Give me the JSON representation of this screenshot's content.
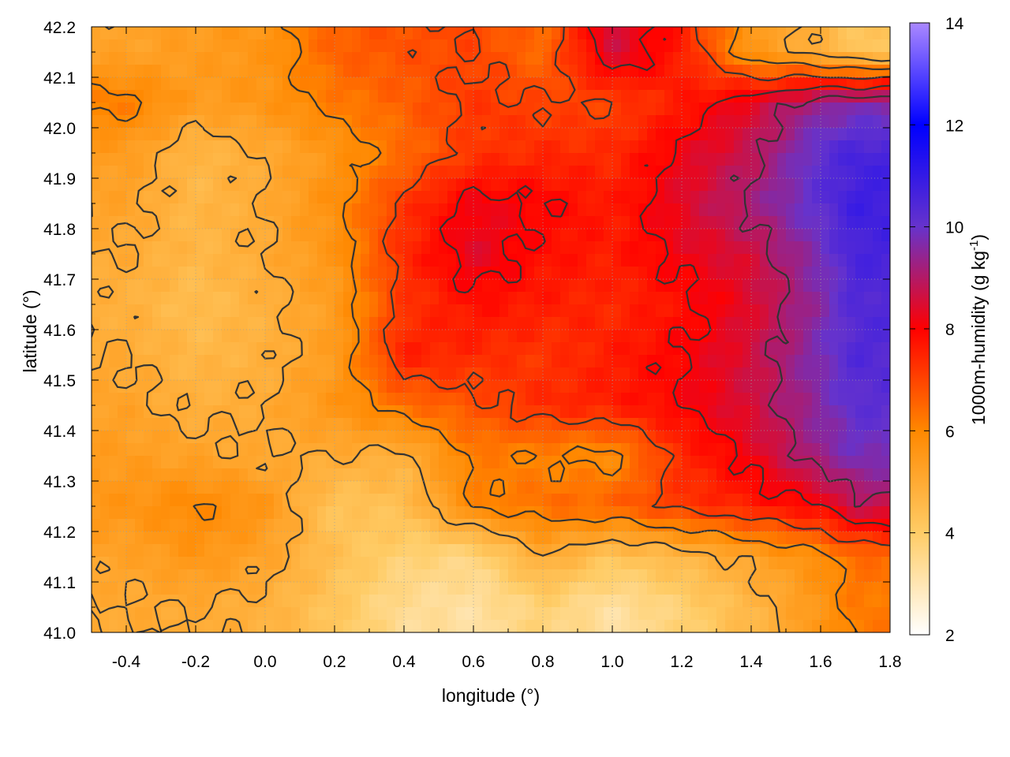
{
  "chart_data": {
    "type": "heatmap",
    "title": "",
    "xlabel": "longitude (°)",
    "ylabel": "latitude (°)",
    "xlim": [
      -0.5,
      1.8
    ],
    "ylim": [
      41.0,
      42.2
    ],
    "x_ticks": [
      "-0.4",
      "-0.2",
      "0.0",
      "0.2",
      "0.4",
      "0.6",
      "0.8",
      "1.0",
      "1.2",
      "1.4",
      "1.6",
      "1.8"
    ],
    "x_tick_values": [
      -0.4,
      -0.2,
      0.0,
      0.2,
      0.4,
      0.6,
      0.8,
      1.0,
      1.2,
      1.4,
      1.6,
      1.8
    ],
    "y_ticks": [
      "41.0",
      "41.1",
      "41.2",
      "41.3",
      "41.4",
      "41.5",
      "41.6",
      "41.7",
      "41.8",
      "41.9",
      "42.0",
      "42.1",
      "42.2"
    ],
    "y_tick_values": [
      41.0,
      41.1,
      41.2,
      41.3,
      41.4,
      41.5,
      41.6,
      41.7,
      41.8,
      41.9,
      42.0,
      42.1,
      42.2
    ],
    "grid": true,
    "contours": true,
    "colorbar": {
      "label": "1000m-humidity (g kg",
      "label_sup": "-1",
      "label_end": ")",
      "range": [
        2,
        14
      ],
      "ticks": [
        "2",
        "4",
        "6",
        "8",
        "10",
        "12",
        "14"
      ],
      "tick_values": [
        2,
        4,
        6,
        8,
        10,
        12,
        14
      ],
      "colors": [
        "#ffffff",
        "#ffcc66",
        "#ff8800",
        "#ff0000",
        "#6633cc",
        "#0000ff",
        "#aa88ff"
      ],
      "color_stops": [
        2,
        4,
        6,
        8,
        10,
        12,
        14
      ]
    },
    "field_grid_note_free": true,
    "lon_samples": [
      -0.4,
      -0.2,
      0.0,
      0.2,
      0.4,
      0.6,
      0.8,
      1.0,
      1.2,
      1.4,
      1.6,
      1.7
    ],
    "lat_samples": [
      42.15,
      42.05,
      41.95,
      41.85,
      41.75,
      41.65,
      41.55,
      41.45,
      41.35,
      41.25,
      41.15,
      41.05
    ],
    "values": [
      [
        5.2,
        5.4,
        5.6,
        6.6,
        6.8,
        7.0,
        6.4,
        8.6,
        7.6,
        5.5,
        4.8,
        4.2
      ],
      [
        6.2,
        5.4,
        5.6,
        6.2,
        6.6,
        7.2,
        7.0,
        7.0,
        7.6,
        8.4,
        9.4,
        9.6
      ],
      [
        5.4,
        4.6,
        5.0,
        5.6,
        6.4,
        7.2,
        7.4,
        7.4,
        8.2,
        8.8,
        10.2,
        10.6
      ],
      [
        5.2,
        4.6,
        5.0,
        5.8,
        7.2,
        8.2,
        8.0,
        7.6,
        8.4,
        9.2,
        10.2,
        10.8
      ],
      [
        5.0,
        4.6,
        5.0,
        5.6,
        7.4,
        8.4,
        7.8,
        7.6,
        8.2,
        8.6,
        9.8,
        10.6
      ],
      [
        4.8,
        4.4,
        4.8,
        5.4,
        7.2,
        7.8,
        7.6,
        7.4,
        7.8,
        8.4,
        9.6,
        10.4
      ],
      [
        5.0,
        4.6,
        4.8,
        5.4,
        7.6,
        7.4,
        7.2,
        7.6,
        8.0,
        8.6,
        9.8,
        10.4
      ],
      [
        5.2,
        4.8,
        5.0,
        5.6,
        6.4,
        6.8,
        7.4,
        7.6,
        8.0,
        8.6,
        9.6,
        10.2
      ],
      [
        5.4,
        5.2,
        5.0,
        5.0,
        4.8,
        6.2,
        6.0,
        5.8,
        7.4,
        8.2,
        9.4,
        9.8
      ],
      [
        5.6,
        6.0,
        5.6,
        4.2,
        4.4,
        6.0,
        6.4,
        6.6,
        7.2,
        7.6,
        8.0,
        8.8
      ],
      [
        5.2,
        5.6,
        5.2,
        4.4,
        3.8,
        3.6,
        5.0,
        4.2,
        4.6,
        5.2,
        5.8,
        6.4
      ],
      [
        5.0,
        5.0,
        4.8,
        4.2,
        3.4,
        3.2,
        3.8,
        3.2,
        3.8,
        4.6,
        5.6,
        6.2
      ]
    ],
    "contour_levels": [
      5,
      6,
      7,
      8,
      9
    ]
  }
}
